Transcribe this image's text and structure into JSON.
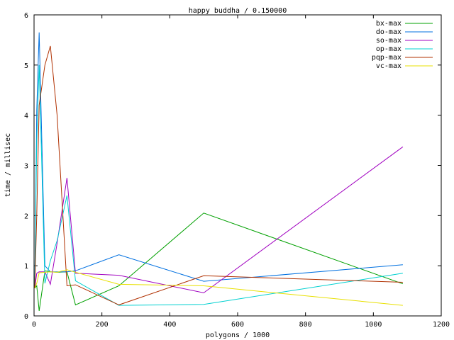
{
  "chart_data": {
    "type": "line",
    "title": "happy buddha / 0.150000",
    "xlabel": "polygons / 1000",
    "ylabel": "time / millisec",
    "xlim": [
      0,
      1200
    ],
    "ylim": [
      0,
      6
    ],
    "xticks": [
      0,
      200,
      400,
      600,
      800,
      1000,
      1200
    ],
    "yticks": [
      0,
      1,
      2,
      3,
      4,
      5,
      6
    ],
    "grid": false,
    "legend_position": "top-right",
    "series": [
      {
        "name": "bx-max",
        "color": "#00a000",
        "points": [
          [
            2,
            0.55
          ],
          [
            8,
            0.6
          ],
          [
            15,
            0.1
          ],
          [
            32,
            0.9
          ],
          [
            48,
            0.88
          ],
          [
            68,
            0.87
          ],
          [
            97,
            0.88
          ],
          [
            122,
            0.22
          ],
          [
            250,
            0.6
          ],
          [
            500,
            2.05
          ],
          [
            1087,
            0.64
          ]
        ]
      },
      {
        "name": "do-max",
        "color": "#0070e0",
        "points": [
          [
            2,
            0.55
          ],
          [
            8,
            4.1
          ],
          [
            15,
            5.65
          ],
          [
            32,
            1.0
          ],
          [
            48,
            0.88
          ],
          [
            68,
            0.88
          ],
          [
            97,
            0.88
          ],
          [
            122,
            0.9
          ],
          [
            250,
            1.22
          ],
          [
            500,
            0.69
          ],
          [
            1087,
            1.02
          ]
        ]
      },
      {
        "name": "so-max",
        "color": "#a000c0",
        "points": [
          [
            2,
            0.55
          ],
          [
            8,
            0.85
          ],
          [
            15,
            0.88
          ],
          [
            32,
            0.88
          ],
          [
            48,
            0.63
          ],
          [
            68,
            1.45
          ],
          [
            97,
            2.75
          ],
          [
            122,
            0.85
          ],
          [
            250,
            0.81
          ],
          [
            500,
            0.46
          ],
          [
            1087,
            3.37
          ]
        ]
      },
      {
        "name": "op-max",
        "color": "#00d0d0",
        "points": [
          [
            2,
            0.55
          ],
          [
            8,
            3.5
          ],
          [
            15,
            5.0
          ],
          [
            32,
            0.65
          ],
          [
            48,
            1.1
          ],
          [
            68,
            1.5
          ],
          [
            97,
            2.4
          ],
          [
            122,
            0.7
          ],
          [
            250,
            0.21
          ],
          [
            500,
            0.23
          ],
          [
            1087,
            0.85
          ]
        ]
      },
      {
        "name": "pqp-max",
        "color": "#b03000",
        "points": [
          [
            2,
            0.55
          ],
          [
            8,
            2.0
          ],
          [
            15,
            4.2
          ],
          [
            32,
            5.0
          ],
          [
            48,
            5.38
          ],
          [
            68,
            4.0
          ],
          [
            97,
            0.6
          ],
          [
            122,
            0.62
          ],
          [
            250,
            0.22
          ],
          [
            500,
            0.8
          ],
          [
            1087,
            0.67
          ]
        ]
      },
      {
        "name": "vc-max",
        "color": "#e8e000",
        "points": [
          [
            2,
            0.55
          ],
          [
            8,
            0.65
          ],
          [
            15,
            0.86
          ],
          [
            32,
            0.87
          ],
          [
            48,
            0.88
          ],
          [
            68,
            0.87
          ],
          [
            97,
            0.92
          ],
          [
            122,
            0.87
          ],
          [
            250,
            0.63
          ],
          [
            500,
            0.6
          ],
          [
            1087,
            0.21
          ]
        ]
      }
    ]
  }
}
